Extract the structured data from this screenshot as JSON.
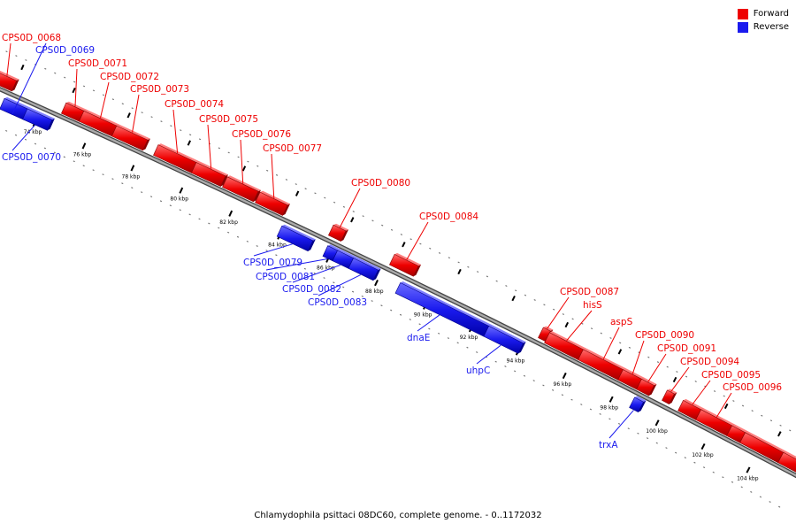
{
  "title": "Chlamydophila psittaci 08DC60, complete genome. - 0..1172032",
  "legend": {
    "forward": "Forward",
    "reverse": "Reverse"
  },
  "colors": {
    "forward": "#ee0000",
    "reverse": "#1a1aee",
    "backbone": "#888888",
    "tick": "#000000"
  },
  "scale_labels": [
    "74 kbp",
    "76 kbp",
    "78 kbp",
    "80 kbp",
    "82 kbp",
    "84 kbp",
    "86 kbp",
    "88 kbp",
    "90 kbp",
    "92 kbp",
    "94 kbp",
    "96 kbp",
    "98 kbp",
    "100 kbp",
    "102 kbp",
    "104 kbp"
  ],
  "genes": [
    {
      "label": "CPS0D_0068",
      "strand": "forward"
    },
    {
      "label": "CPS0D_0069",
      "strand": "reverse"
    },
    {
      "label": "CPS0D_0070",
      "strand": "reverse"
    },
    {
      "label": "CPS0D_0071",
      "strand": "forward"
    },
    {
      "label": "CPS0D_0072",
      "strand": "forward"
    },
    {
      "label": "CPS0D_0073",
      "strand": "forward"
    },
    {
      "label": "CPS0D_0074",
      "strand": "forward"
    },
    {
      "label": "CPS0D_0075",
      "strand": "forward"
    },
    {
      "label": "CPS0D_0076",
      "strand": "forward"
    },
    {
      "label": "CPS0D_0077",
      "strand": "forward"
    },
    {
      "label": "CPS0D_0079",
      "strand": "reverse"
    },
    {
      "label": "CPS0D_0080",
      "strand": "forward"
    },
    {
      "label": "CPS0D_0081",
      "strand": "reverse"
    },
    {
      "label": "CPS0D_0082",
      "strand": "reverse"
    },
    {
      "label": "CPS0D_0083",
      "strand": "reverse"
    },
    {
      "label": "CPS0D_0084",
      "strand": "forward"
    },
    {
      "label": "dnaE",
      "strand": "reverse"
    },
    {
      "label": "uhpC",
      "strand": "reverse"
    },
    {
      "label": "CPS0D_0087",
      "strand": "forward"
    },
    {
      "label": "hisS",
      "strand": "forward"
    },
    {
      "label": "aspS",
      "strand": "forward"
    },
    {
      "label": "CPS0D_0090",
      "strand": "forward"
    },
    {
      "label": "CPS0D_0091",
      "strand": "forward"
    },
    {
      "label": "trxA",
      "strand": "reverse"
    },
    {
      "label": "CPS0D_0094",
      "strand": "forward"
    },
    {
      "label": "CPS0D_0095",
      "strand": "forward"
    },
    {
      "label": "CPS0D_0096",
      "strand": "forward"
    }
  ]
}
